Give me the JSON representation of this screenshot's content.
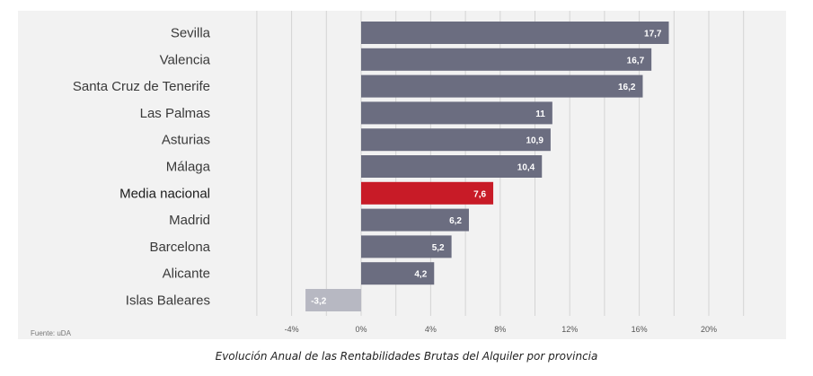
{
  "caption": "Evolución Anual de las Rentabilidades Brutas del Alquiler por provincia",
  "source": "Fuente: uDA",
  "colors": {
    "bar": "#6b6d80",
    "highlight": "#c81b27",
    "negative": "#b7b8c2",
    "gridline": "#d4d4d4",
    "background": "#f2f2f2"
  },
  "chart_data": {
    "type": "bar",
    "orientation": "horizontal",
    "categories": [
      "Sevilla",
      "Valencia",
      "Santa Cruz de Tenerife",
      "Las Palmas",
      "Asturias",
      "Málaga",
      "Media nacional",
      "Madrid",
      "Barcelona",
      "Alicante",
      "Islas Baleares"
    ],
    "values": [
      17.7,
      16.7,
      16.2,
      11,
      10.9,
      10.4,
      7.6,
      6.2,
      5.2,
      4.2,
      -3.2
    ],
    "value_labels": [
      "17,7",
      "16,7",
      "16,2",
      "11",
      "10,9",
      "10,4",
      "7,6",
      "6,2",
      "5,2",
      "4,2",
      "-3,2"
    ],
    "highlight": "Media nacional",
    "xlim": [
      -8,
      22
    ],
    "x_ticks": [
      -4,
      0,
      4,
      8,
      12,
      16,
      20
    ],
    "x_tick_labels": [
      "-4%",
      "0%",
      "4%",
      "8%",
      "12%",
      "16%",
      "20%"
    ],
    "grid": true,
    "title": "",
    "xlabel": "",
    "ylabel": ""
  }
}
